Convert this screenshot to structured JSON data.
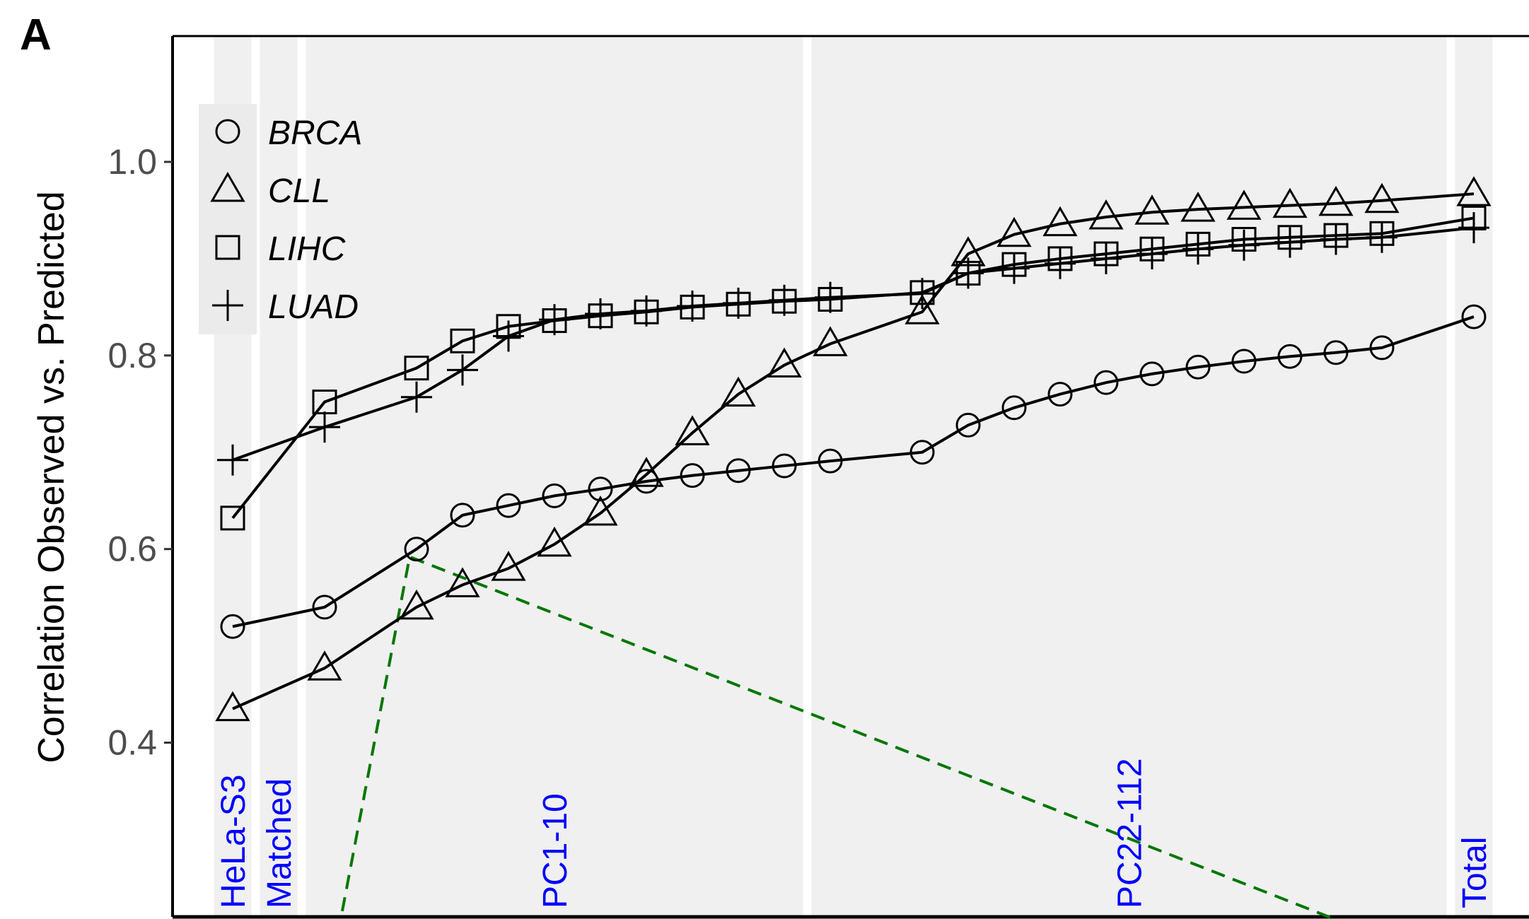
{
  "panel_label": "A",
  "chart_data": {
    "type": "line",
    "title": "",
    "xlabel": "",
    "ylabel": "Correlation Observed vs. Predicted",
    "ylim": [
      0.22,
      1.13
    ],
    "yticks": [
      0.4,
      0.6,
      0.8,
      1.0
    ],
    "ytick_labels": [
      "0.4",
      "0.6",
      "0.8",
      "1.0"
    ],
    "x_count": 28,
    "groups": [
      {
        "label": "HeLa-S3",
        "start": 0,
        "end": 0
      },
      {
        "label": "Matched",
        "start": 1,
        "end": 1
      },
      {
        "label": "PC1-10",
        "start": 2,
        "end": 12
      },
      {
        "label": "PC22-112",
        "start": 13,
        "end": 26
      },
      {
        "label": "Total",
        "start": 27,
        "end": 27
      }
    ],
    "group_label_color": "#0000ff",
    "legend_placement": "top-left",
    "series": [
      {
        "name": "BRCA",
        "marker": "circle",
        "values": [
          0.52,
          0.54,
          0.6,
          0.635,
          0.645,
          0.655,
          0.662,
          0.67,
          0.676,
          0.681,
          0.686,
          0.691,
          0.7,
          0.728,
          0.746,
          0.76,
          0.772,
          0.781,
          0.788,
          0.794,
          0.799,
          0.803,
          0.808,
          0.84
        ]
      },
      {
        "name": "CLL",
        "marker": "triangle",
        "values": [
          0.435,
          0.477,
          0.54,
          0.563,
          0.58,
          0.605,
          0.637,
          0.677,
          0.72,
          0.76,
          0.79,
          0.812,
          0.845,
          0.905,
          0.925,
          0.936,
          0.943,
          0.948,
          0.951,
          0.953,
          0.955,
          0.957,
          0.96,
          0.967
        ]
      },
      {
        "name": "LIHC",
        "marker": "square",
        "values": [
          0.632,
          0.752,
          0.787,
          0.815,
          0.83,
          0.836,
          0.841,
          0.845,
          0.85,
          0.853,
          0.856,
          0.858,
          0.865,
          0.885,
          0.894,
          0.9,
          0.905,
          0.91,
          0.915,
          0.92,
          0.922,
          0.924,
          0.926,
          0.942
        ]
      },
      {
        "name": "LUAD",
        "marker": "plus",
        "values": [
          0.692,
          0.726,
          0.757,
          0.785,
          0.82,
          0.837,
          0.843,
          0.846,
          0.851,
          0.854,
          0.857,
          0.86,
          0.864,
          0.885,
          0.89,
          0.895,
          0.9,
          0.905,
          0.91,
          0.914,
          0.917,
          0.92,
          0.922,
          0.932
        ]
      }
    ],
    "x_positions": [
      0,
      2,
      4,
      5,
      6,
      7,
      8,
      9,
      10,
      11,
      12,
      13,
      15,
      16,
      17,
      18,
      19,
      20,
      21,
      22,
      23,
      24,
      25,
      27
    ],
    "annotation_line": {
      "style": "dashed",
      "color": "#007700",
      "points": [
        {
          "x": 2.2,
          "y": 0.18
        },
        {
          "x": 3.85,
          "y": 0.592
        },
        {
          "x": 26.0,
          "y": 0.18
        }
      ]
    }
  }
}
